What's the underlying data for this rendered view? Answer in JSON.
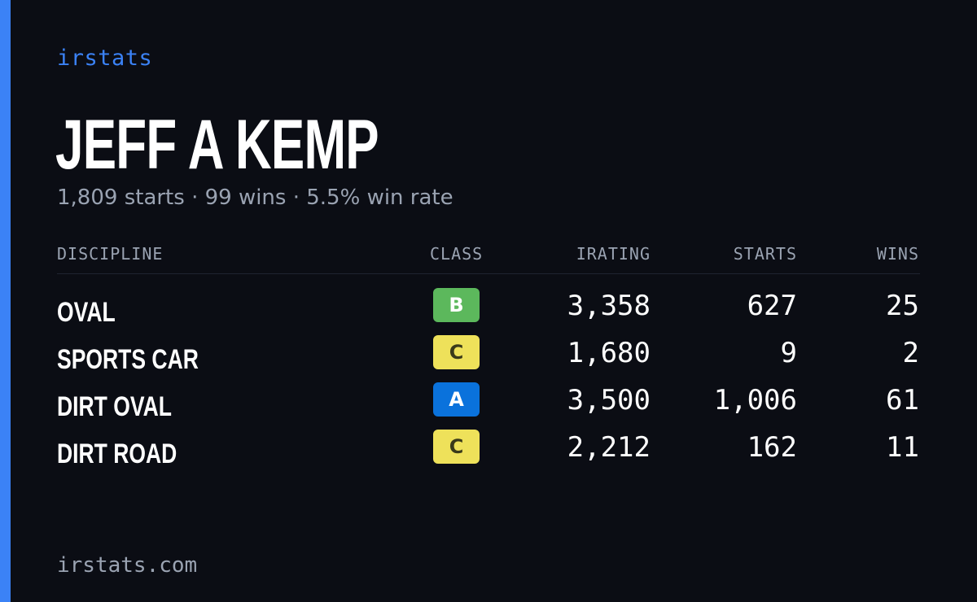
{
  "brand": "irstats",
  "driver": {
    "name": "JEFF A KEMP",
    "summary": "1,809 starts · 99 wins · 5.5% win rate"
  },
  "table": {
    "headers": {
      "discipline": "DISCIPLINE",
      "class": "CLASS",
      "irating": "IRATING",
      "starts": "STARTS",
      "wins": "WINS"
    },
    "rows": [
      {
        "discipline": "OVAL",
        "class": "B",
        "irating": "3,358",
        "starts": "627",
        "wins": "25"
      },
      {
        "discipline": "SPORTS CAR",
        "class": "C",
        "irating": "1,680",
        "starts": "9",
        "wins": "2"
      },
      {
        "discipline": "DIRT OVAL",
        "class": "A",
        "irating": "3,500",
        "starts": "1,006",
        "wins": "61"
      },
      {
        "discipline": "DIRT ROAD",
        "class": "C",
        "irating": "2,212",
        "starts": "162",
        "wins": "11"
      }
    ]
  },
  "footer": {
    "domain": "irstats.com"
  },
  "colors": {
    "background": "#0b0d14",
    "accent": "#3b82f6",
    "muted_text": "#9aa3b2",
    "class_a": "#0a72dc",
    "class_b": "#5cb85c",
    "class_c": "#eee15a"
  }
}
